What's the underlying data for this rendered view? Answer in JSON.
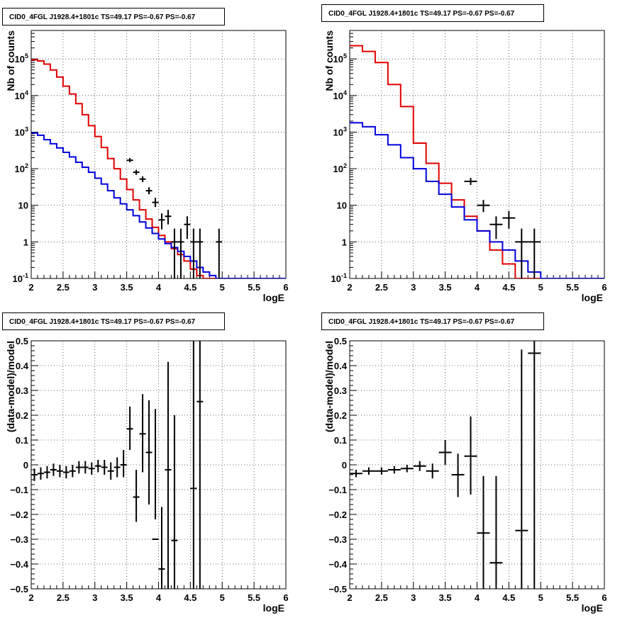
{
  "colors": {
    "data": "#000000",
    "model_total": "#e00000",
    "model_background": "#0000dd",
    "grid": "#444444"
  },
  "chart_data": [
    {
      "type": "line",
      "title": "CID0_4FGL J1928.4+1801c TS=49.17 PS=-0.67 PS=-0.67",
      "xlabel": "logE",
      "ylabel": "Nb of counts",
      "xlim": [
        2,
        6
      ],
      "ylim": [
        0.1,
        600000
      ],
      "ylog": true,
      "grid": true,
      "xticks": [
        "2",
        "2.5",
        "3",
        "3.5",
        "4",
        "4.5",
        "5",
        "5.5",
        "6"
      ],
      "yticks": [
        {
          "v": 0.1,
          "l": "10^-1"
        },
        {
          "v": 1,
          "l": "1"
        },
        {
          "v": 10,
          "l": "10"
        },
        {
          "v": 100,
          "l": "10^2"
        },
        {
          "v": 1000,
          "l": "10^3"
        },
        {
          "v": 10000,
          "l": "10^4"
        },
        {
          "v": 100000,
          "l": "10^5"
        }
      ],
      "bin_width": 0.1,
      "series": [
        {
          "type": "step",
          "color": "#e00000",
          "edges_start": 2.0,
          "values": [
            95000,
            88000,
            72000,
            50000,
            32000,
            18000,
            11000,
            6000,
            3000,
            1500,
            760,
            380,
            190,
            100,
            52,
            27,
            14,
            7.5,
            4.2,
            2.5,
            1.5,
            1.0,
            0.65,
            0.45,
            0.3,
            0.18,
            0.12,
            0.1,
            0.1,
            0.1,
            0.1,
            0.1,
            0.1,
            0.1,
            0.1,
            0.1,
            0.1,
            0.1,
            0.1,
            0.1
          ]
        },
        {
          "type": "step",
          "color": "#0000dd",
          "edges_start": 2.0,
          "values": [
            950,
            820,
            620,
            480,
            370,
            280,
            210,
            150,
            110,
            80,
            55,
            38,
            25,
            16,
            11,
            7.5,
            5.2,
            3.5,
            2.4,
            1.7,
            1.2,
            0.9,
            0.7,
            0.55,
            0.4,
            0.3,
            0.2,
            0.15,
            0.12,
            0.1,
            0.1,
            0.1,
            0.1,
            0.1,
            0.1,
            0.1,
            0.1,
            0.1,
            0.1,
            0.1
          ]
        },
        {
          "type": "errorbar",
          "color": "#000000",
          "points": [
            {
              "x": 3.55,
              "y": 170,
              "lo": 150,
              "hi": 195
            },
            {
              "x": 3.65,
              "y": 80,
              "lo": 68,
              "hi": 93
            },
            {
              "x": 3.75,
              "y": 52,
              "lo": 43,
              "hi": 62
            },
            {
              "x": 3.85,
              "y": 25,
              "lo": 20,
              "hi": 31
            },
            {
              "x": 3.95,
              "y": 12,
              "lo": 9,
              "hi": 16
            },
            {
              "x": 4.05,
              "y": 4,
              "lo": 2.2,
              "hi": 6
            },
            {
              "x": 4.15,
              "y": 5,
              "lo": 3,
              "hi": 7.5
            },
            {
              "x": 4.25,
              "y": 1,
              "lo": 0.1,
              "hi": 2.3
            },
            {
              "x": 4.35,
              "y": 1,
              "lo": 0.1,
              "hi": 2.3
            },
            {
              "x": 4.45,
              "y": 3,
              "lo": 1.2,
              "hi": 5
            },
            {
              "x": 4.55,
              "y": 1,
              "lo": 0.1,
              "hi": 2.3
            },
            {
              "x": 4.65,
              "y": 1,
              "lo": 0.1,
              "hi": 2.3
            },
            {
              "x": 4.95,
              "y": 1,
              "lo": 0.1,
              "hi": 2.3
            }
          ]
        }
      ]
    },
    {
      "type": "line",
      "title": "CID0_4FGL J1928.4+1801c TS=49.17 PS=-0.67 PS=-0.67",
      "xlabel": "logE",
      "ylabel": "Nb of counts",
      "xlim": [
        2,
        6
      ],
      "ylim": [
        0.1,
        600000
      ],
      "ylog": true,
      "grid": true,
      "xticks": [
        "2",
        "2.5",
        "3",
        "3.5",
        "4",
        "4.5",
        "5",
        "5.5",
        "6"
      ],
      "yticks": [
        {
          "v": 0.1,
          "l": "10^-1"
        },
        {
          "v": 1,
          "l": "1"
        },
        {
          "v": 10,
          "l": "10"
        },
        {
          "v": 100,
          "l": "10^2"
        },
        {
          "v": 1000,
          "l": "10^3"
        },
        {
          "v": 10000,
          "l": "10^4"
        },
        {
          "v": 100000,
          "l": "10^5"
        }
      ],
      "bin_width": 0.2,
      "series": [
        {
          "type": "step",
          "color": "#e00000",
          "edges_start": 2.0,
          "values": [
            230000,
            160000,
            80000,
            20000,
            5000,
            500,
            140,
            40,
            14,
            5,
            2,
            0.6,
            0.25,
            0.1,
            0.1,
            0.1,
            0.1,
            0.1,
            0.1,
            0.1
          ]
        },
        {
          "type": "step",
          "color": "#0000dd",
          "edges_start": 2.0,
          "values": [
            1800,
            1400,
            850,
            450,
            200,
            100,
            45,
            20,
            9,
            4,
            2,
            1.0,
            0.6,
            0.3,
            0.15,
            0.1,
            0.1,
            0.1,
            0.1,
            0.1
          ]
        },
        {
          "type": "errorbar",
          "color": "#000000",
          "points": [
            {
              "x": 3.9,
              "y": 45,
              "lo": 36,
              "hi": 56
            },
            {
              "x": 4.1,
              "y": 10,
              "lo": 6.5,
              "hi": 14
            },
            {
              "x": 4.3,
              "y": 3,
              "lo": 1.2,
              "hi": 5
            },
            {
              "x": 4.5,
              "y": 4.5,
              "lo": 2.3,
              "hi": 7
            },
            {
              "x": 4.7,
              "y": 1,
              "lo": 0.1,
              "hi": 2.3
            },
            {
              "x": 4.9,
              "y": 1,
              "lo": 0.1,
              "hi": 2.3
            }
          ]
        }
      ]
    },
    {
      "type": "scatter",
      "title": "CID0_4FGL J1928.4+1801c TS=49.17 PS=-0.67 PS=-0.67",
      "xlabel": "logE",
      "ylabel": "(data-model)/model",
      "xlim": [
        2,
        6
      ],
      "ylim": [
        -0.5,
        0.5
      ],
      "ylog": false,
      "grid": true,
      "xticks": [
        "2",
        "2.5",
        "3",
        "3.5",
        "4",
        "4.5",
        "5",
        "5.5",
        "6"
      ],
      "yticks": [
        {
          "v": -0.5,
          "l": "−0.5"
        },
        {
          "v": -0.4,
          "l": "−0.4"
        },
        {
          "v": -0.3,
          "l": "−0.3"
        },
        {
          "v": -0.2,
          "l": "−0.2"
        },
        {
          "v": -0.1,
          "l": "−0.1"
        },
        {
          "v": 0,
          "l": "0"
        },
        {
          "v": 0.1,
          "l": "0.1"
        },
        {
          "v": 0.2,
          "l": "0.2"
        },
        {
          "v": 0.3,
          "l": "0.3"
        },
        {
          "v": 0.4,
          "l": "0.4"
        },
        {
          "v": 0.5,
          "l": "0.5"
        }
      ],
      "bin_width": 0.1,
      "series": [
        {
          "type": "errorbar",
          "color": "#000000",
          "points": [
            {
              "x": 2.05,
              "y": -0.04,
              "lo": -0.065,
              "hi": -0.015
            },
            {
              "x": 2.15,
              "y": -0.035,
              "lo": -0.06,
              "hi": -0.01
            },
            {
              "x": 2.25,
              "y": -0.03,
              "lo": -0.055,
              "hi": -0.005
            },
            {
              "x": 2.35,
              "y": -0.02,
              "lo": -0.045,
              "hi": 0.005
            },
            {
              "x": 2.45,
              "y": -0.025,
              "lo": -0.05,
              "hi": 0.0
            },
            {
              "x": 2.55,
              "y": -0.03,
              "lo": -0.055,
              "hi": -0.005
            },
            {
              "x": 2.65,
              "y": -0.025,
              "lo": -0.05,
              "hi": 0.0
            },
            {
              "x": 2.75,
              "y": -0.01,
              "lo": -0.035,
              "hi": 0.015
            },
            {
              "x": 2.85,
              "y": -0.01,
              "lo": -0.035,
              "hi": 0.015
            },
            {
              "x": 2.95,
              "y": -0.015,
              "lo": -0.04,
              "hi": 0.01
            },
            {
              "x": 3.05,
              "y": -0.005,
              "lo": -0.03,
              "hi": 0.02
            },
            {
              "x": 3.15,
              "y": -0.01,
              "lo": -0.04,
              "hi": 0.02
            },
            {
              "x": 3.25,
              "y": -0.025,
              "lo": -0.06,
              "hi": 0.01
            },
            {
              "x": 3.35,
              "y": -0.01,
              "lo": -0.05,
              "hi": 0.03
            },
            {
              "x": 3.45,
              "y": 0.0,
              "lo": -0.05,
              "hi": 0.06
            },
            {
              "x": 3.55,
              "y": 0.145,
              "lo": 0.06,
              "hi": 0.235
            },
            {
              "x": 3.65,
              "y": -0.13,
              "lo": -0.23,
              "hi": -0.02
            },
            {
              "x": 3.75,
              "y": 0.125,
              "lo": -0.03,
              "hi": 0.285
            },
            {
              "x": 3.85,
              "y": 0.05,
              "lo": -0.16,
              "hi": 0.26
            },
            {
              "x": 3.95,
              "y": -0.3,
              "lo": -0.22,
              "hi": 0.225,
              "yy": 0.025
            },
            {
              "x": 4.05,
              "y": -0.42,
              "lo": -0.5,
              "hi": -0.17
            },
            {
              "x": 4.15,
              "y": -0.02,
              "lo": -0.5,
              "hi": 0.415
            },
            {
              "x": 4.25,
              "y": -0.305,
              "lo": -0.5,
              "hi": 0.2
            },
            {
              "x": 4.55,
              "y": -0.095,
              "lo": -0.5,
              "hi": 0.5
            },
            {
              "x": 4.65,
              "y": 0.255,
              "lo": -0.5,
              "hi": 0.5
            }
          ]
        }
      ]
    },
    {
      "type": "scatter",
      "title": "CID0_4FGL J1928.4+1801c TS=49.17 PS=-0.67 PS=-0.67",
      "xlabel": "logE",
      "ylabel": "(data-model)/model",
      "xlim": [
        2,
        6
      ],
      "ylim": [
        -0.5,
        0.5
      ],
      "ylog": false,
      "grid": true,
      "xticks": [
        "2",
        "2.5",
        "3",
        "3.5",
        "4",
        "4.5",
        "5",
        "5.5",
        "6"
      ],
      "yticks": [
        {
          "v": -0.5,
          "l": "−0.5"
        },
        {
          "v": -0.4,
          "l": "−0.4"
        },
        {
          "v": -0.3,
          "l": "−0.3"
        },
        {
          "v": -0.2,
          "l": "−0.2"
        },
        {
          "v": -0.1,
          "l": "−0.1"
        },
        {
          "v": 0,
          "l": "0"
        },
        {
          "v": 0.1,
          "l": "0.1"
        },
        {
          "v": 0.2,
          "l": "0.2"
        },
        {
          "v": 0.3,
          "l": "0.3"
        },
        {
          "v": 0.4,
          "l": "0.4"
        },
        {
          "v": 0.5,
          "l": "0.5"
        }
      ],
      "bin_width": 0.2,
      "series": [
        {
          "type": "errorbar",
          "color": "#000000",
          "points": [
            {
              "x": 2.1,
              "y": -0.035,
              "lo": -0.05,
              "hi": -0.02
            },
            {
              "x": 2.3,
              "y": -0.025,
              "lo": -0.04,
              "hi": -0.01
            },
            {
              "x": 2.5,
              "y": -0.025,
              "lo": -0.04,
              "hi": -0.01
            },
            {
              "x": 2.7,
              "y": -0.02,
              "lo": -0.035,
              "hi": -0.005
            },
            {
              "x": 2.9,
              "y": -0.015,
              "lo": -0.03,
              "hi": 0.0
            },
            {
              "x": 3.1,
              "y": -0.005,
              "lo": -0.025,
              "hi": 0.015
            },
            {
              "x": 3.3,
              "y": -0.025,
              "lo": -0.055,
              "hi": 0.005
            },
            {
              "x": 3.5,
              "y": 0.05,
              "lo": 0.0,
              "hi": 0.1
            },
            {
              "x": 3.7,
              "y": -0.04,
              "lo": -0.13,
              "hi": 0.045
            },
            {
              "x": 3.9,
              "y": 0.035,
              "lo": -0.12,
              "hi": 0.195
            },
            {
              "x": 4.1,
              "y": -0.275,
              "lo": -0.5,
              "hi": -0.045
            },
            {
              "x": 4.3,
              "y": -0.395,
              "lo": -0.5,
              "hi": -0.045
            },
            {
              "x": 4.7,
              "y": -0.265,
              "lo": -0.5,
              "hi": 0.465
            },
            {
              "x": 4.9,
              "y": 0.45,
              "lo": -0.5,
              "hi": 0.5
            }
          ]
        }
      ]
    }
  ]
}
